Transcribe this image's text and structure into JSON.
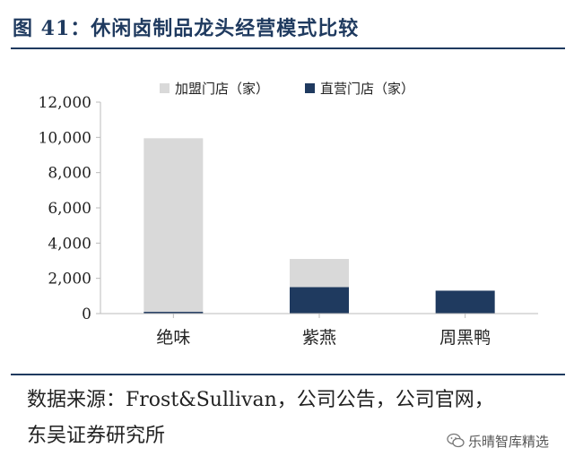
{
  "title": "图 41：休闲卤制品龙头经营模式比较",
  "source_text": "数据来源：Frost&Sullivan，公司公告，公司官网，东吴证券研究所",
  "watermark": "乐晴智库精选",
  "colors": {
    "franchise": "#d9d9d9",
    "direct": "#1f3a5f",
    "title": "#1f3a5f"
  },
  "chart_data": {
    "type": "bar",
    "stacked": true,
    "categories": [
      "绝味",
      "紫燕",
      "周黑鸭"
    ],
    "series": [
      {
        "name": "加盟门店（家）",
        "values": [
          9850,
          1600,
          0
        ],
        "color": "#d9d9d9"
      },
      {
        "name": "直营门店（家）",
        "values": [
          100,
          1500,
          1300
        ],
        "color": "#1f3a5f"
      }
    ],
    "ylim": [
      0,
      12000
    ],
    "yticks": [
      "0",
      "2,000",
      "4,000",
      "6,000",
      "8,000",
      "10,000",
      "12,000"
    ],
    "grid": false,
    "legend_position": "top"
  }
}
